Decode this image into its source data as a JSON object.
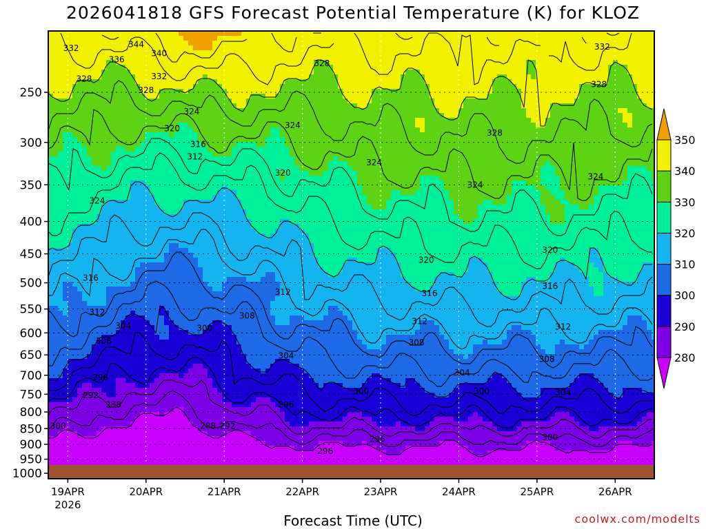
{
  "chart_data": {
    "type": "heatmap",
    "title": "2026041818 GFS Forecast Potential Temperature (K) for KLOZ",
    "xlabel": "Forecast Time (UTC)",
    "ylabel": "",
    "credit": "coolwx.com/modelts",
    "year_label": "2026",
    "x_ticks": [
      {
        "label": "19APR",
        "hour": 6
      },
      {
        "label": "20APR",
        "hour": 30
      },
      {
        "label": "21APR",
        "hour": 54
      },
      {
        "label": "22APR",
        "hour": 78
      },
      {
        "label": "23APR",
        "hour": 102
      },
      {
        "label": "24APR",
        "hour": 126
      },
      {
        "label": "25APR",
        "hour": 150
      },
      {
        "label": "26APR",
        "hour": 174
      }
    ],
    "x_range_hours": [
      0,
      186
    ],
    "y_axis": {
      "unit": "hPa",
      "range": [
        1020,
        200
      ],
      "scale": "log"
    },
    "y_ticks": [
      "250",
      "300",
      "350",
      "400",
      "450",
      "500",
      "550",
      "600",
      "650",
      "700",
      "750",
      "800",
      "850",
      "900",
      "950",
      "1000"
    ],
    "surface_pressure_hpa": 970,
    "colorbar": {
      "levels": [
        280,
        290,
        300,
        310,
        320,
        330,
        340,
        350
      ],
      "labels": [
        "280",
        "290",
        "300",
        "310",
        "320",
        "330",
        "340",
        "350"
      ],
      "colors": [
        "#c800ff",
        "#7d00e6",
        "#1a00d6",
        "#1e6ae6",
        "#14b4f0",
        "#00f09a",
        "#5ed314",
        "#f2f200",
        "#f0a000"
      ]
    },
    "contour_labels": [
      {
        "text": "344",
        "hour": 27,
        "p": 210
      },
      {
        "text": "340",
        "hour": 34,
        "p": 217
      },
      {
        "text": "336",
        "hour": 21,
        "p": 222
      },
      {
        "text": "332",
        "hour": 34,
        "p": 236
      },
      {
        "text": "332",
        "hour": 7,
        "p": 213
      },
      {
        "text": "328",
        "hour": 11,
        "p": 238
      },
      {
        "text": "328",
        "hour": 30,
        "p": 248
      },
      {
        "text": "324",
        "hour": 44,
        "p": 268
      },
      {
        "text": "320",
        "hour": 38,
        "p": 285
      },
      {
        "text": "316",
        "hour": 46,
        "p": 302
      },
      {
        "text": "312",
        "hour": 45,
        "p": 316
      },
      {
        "text": "324",
        "hour": 15,
        "p": 371
      },
      {
        "text": "316",
        "hour": 13,
        "p": 491
      },
      {
        "text": "312",
        "hour": 15,
        "p": 557
      },
      {
        "text": "304",
        "hour": 23,
        "p": 585
      },
      {
        "text": "308",
        "hour": 17,
        "p": 618
      },
      {
        "text": "300",
        "hour": 48,
        "p": 590
      },
      {
        "text": "296",
        "hour": 16,
        "p": 706
      },
      {
        "text": "292",
        "hour": 13,
        "p": 753
      },
      {
        "text": "288",
        "hour": 20,
        "p": 779
      },
      {
        "text": "288",
        "hour": 49,
        "p": 842
      },
      {
        "text": "292",
        "hour": 55,
        "p": 842
      },
      {
        "text": "300",
        "hour": 3,
        "p": 842
      },
      {
        "text": "320",
        "hour": 72,
        "p": 335
      },
      {
        "text": "312",
        "hour": 72,
        "p": 517
      },
      {
        "text": "308",
        "hour": 61,
        "p": 564
      },
      {
        "text": "304",
        "hour": 73,
        "p": 652
      },
      {
        "text": "296",
        "hour": 73,
        "p": 779
      },
      {
        "text": "296",
        "hour": 85,
        "p": 923
      },
      {
        "text": "328",
        "hour": 84,
        "p": 225
      },
      {
        "text": "324",
        "hour": 75,
        "p": 282
      },
      {
        "text": "324",
        "hour": 100,
        "p": 323
      },
      {
        "text": "300",
        "hour": 96,
        "p": 742
      },
      {
        "text": "296",
        "hour": 101,
        "p": 883
      },
      {
        "text": "320",
        "hour": 116,
        "p": 460
      },
      {
        "text": "316",
        "hour": 117,
        "p": 520
      },
      {
        "text": "312",
        "hour": 114,
        "p": 575
      },
      {
        "text": "308",
        "hour": 113,
        "p": 622
      },
      {
        "text": "304",
        "hour": 127,
        "p": 693
      },
      {
        "text": "300",
        "hour": 133,
        "p": 742
      },
      {
        "text": "328",
        "hour": 137,
        "p": 290
      },
      {
        "text": "324",
        "hour": 131,
        "p": 350
      },
      {
        "text": "320",
        "hour": 154,
        "p": 444
      },
      {
        "text": "316",
        "hour": 154,
        "p": 506
      },
      {
        "text": "312",
        "hour": 158,
        "p": 587
      },
      {
        "text": "308",
        "hour": 153,
        "p": 660
      },
      {
        "text": "304",
        "hour": 158,
        "p": 745
      },
      {
        "text": "300",
        "hour": 154,
        "p": 878
      },
      {
        "text": "332",
        "hour": 170,
        "p": 212
      },
      {
        "text": "328",
        "hour": 169,
        "p": 243
      },
      {
        "text": "324",
        "hour": 168,
        "p": 340
      }
    ]
  }
}
